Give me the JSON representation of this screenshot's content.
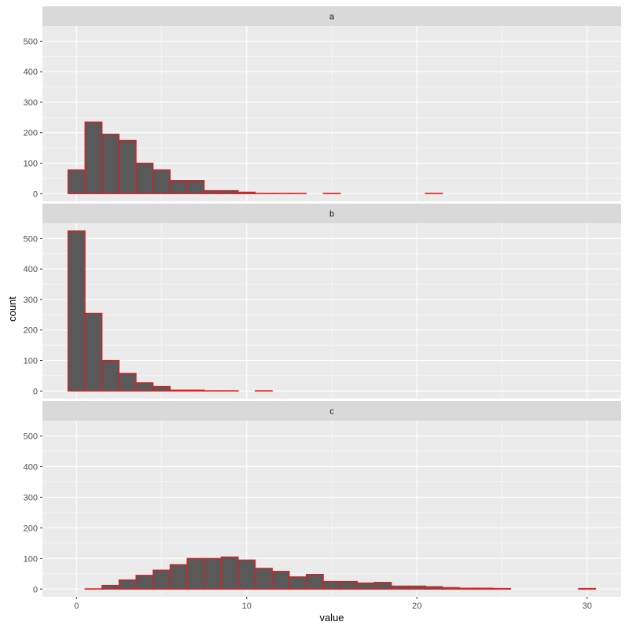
{
  "chart_data": {
    "type": "bar",
    "xlabel": "value",
    "ylabel": "count",
    "xlim": [
      -2,
      32
    ],
    "ylim": [
      -25,
      550
    ],
    "x_ticks": [
      0,
      10,
      20,
      30
    ],
    "x_tick_labels": [
      "0",
      "10",
      "20",
      "30"
    ],
    "y_ticks": [
      0,
      100,
      200,
      300,
      400,
      500
    ],
    "y_tick_labels": [
      "0",
      "100",
      "200",
      "300",
      "400",
      "500"
    ],
    "grid": true,
    "facets": [
      {
        "name": "a",
        "bins": [
          {
            "x0": -0.5,
            "x1": 0.5,
            "count": 78
          },
          {
            "x0": 0.5,
            "x1": 1.5,
            "count": 235
          },
          {
            "x0": 1.5,
            "x1": 2.5,
            "count": 195
          },
          {
            "x0": 2.5,
            "x1": 3.5,
            "count": 175
          },
          {
            "x0": 3.5,
            "x1": 4.5,
            "count": 100
          },
          {
            "x0": 4.5,
            "x1": 5.5,
            "count": 78
          },
          {
            "x0": 5.5,
            "x1": 6.5,
            "count": 43
          },
          {
            "x0": 6.5,
            "x1": 7.5,
            "count": 43
          },
          {
            "x0": 7.5,
            "x1": 8.5,
            "count": 10
          },
          {
            "x0": 8.5,
            "x1": 9.5,
            "count": 10
          },
          {
            "x0": 9.5,
            "x1": 10.5,
            "count": 5
          },
          {
            "x0": 10.5,
            "x1": 11.5,
            "count": 1
          },
          {
            "x0": 11.5,
            "x1": 12.5,
            "count": 1
          },
          {
            "x0": 12.5,
            "x1": 13.5,
            "count": 1
          },
          {
            "x0": 14.5,
            "x1": 15.5,
            "count": 1
          },
          {
            "x0": 20.5,
            "x1": 21.5,
            "count": 1
          }
        ]
      },
      {
        "name": "b",
        "bins": [
          {
            "x0": -0.5,
            "x1": 0.5,
            "count": 525
          },
          {
            "x0": 0.5,
            "x1": 1.5,
            "count": 255
          },
          {
            "x0": 1.5,
            "x1": 2.5,
            "count": 100
          },
          {
            "x0": 2.5,
            "x1": 3.5,
            "count": 58
          },
          {
            "x0": 3.5,
            "x1": 4.5,
            "count": 27
          },
          {
            "x0": 4.5,
            "x1": 5.5,
            "count": 15
          },
          {
            "x0": 5.5,
            "x1": 6.5,
            "count": 3
          },
          {
            "x0": 6.5,
            "x1": 7.5,
            "count": 3
          },
          {
            "x0": 7.5,
            "x1": 8.5,
            "count": 1
          },
          {
            "x0": 8.5,
            "x1": 9.5,
            "count": 1
          },
          {
            "x0": 10.5,
            "x1": 11.5,
            "count": 1
          }
        ]
      },
      {
        "name": "c",
        "bins": [
          {
            "x0": 0.5,
            "x1": 1.5,
            "count": 1
          },
          {
            "x0": 1.5,
            "x1": 2.5,
            "count": 12
          },
          {
            "x0": 2.5,
            "x1": 3.5,
            "count": 30
          },
          {
            "x0": 3.5,
            "x1": 4.5,
            "count": 45
          },
          {
            "x0": 4.5,
            "x1": 5.5,
            "count": 62
          },
          {
            "x0": 5.5,
            "x1": 6.5,
            "count": 80
          },
          {
            "x0": 6.5,
            "x1": 7.5,
            "count": 100
          },
          {
            "x0": 7.5,
            "x1": 8.5,
            "count": 100
          },
          {
            "x0": 8.5,
            "x1": 9.5,
            "count": 105
          },
          {
            "x0": 9.5,
            "x1": 10.5,
            "count": 95
          },
          {
            "x0": 10.5,
            "x1": 11.5,
            "count": 68
          },
          {
            "x0": 11.5,
            "x1": 12.5,
            "count": 58
          },
          {
            "x0": 12.5,
            "x1": 13.5,
            "count": 40
          },
          {
            "x0": 13.5,
            "x1": 14.5,
            "count": 48
          },
          {
            "x0": 14.5,
            "x1": 15.5,
            "count": 25
          },
          {
            "x0": 15.5,
            "x1": 16.5,
            "count": 25
          },
          {
            "x0": 16.5,
            "x1": 17.5,
            "count": 20
          },
          {
            "x0": 17.5,
            "x1": 18.5,
            "count": 22
          },
          {
            "x0": 18.5,
            "x1": 19.5,
            "count": 10
          },
          {
            "x0": 19.5,
            "x1": 20.5,
            "count": 10
          },
          {
            "x0": 20.5,
            "x1": 21.5,
            "count": 8
          },
          {
            "x0": 21.5,
            "x1": 22.5,
            "count": 5
          },
          {
            "x0": 22.5,
            "x1": 23.5,
            "count": 3
          },
          {
            "x0": 23.5,
            "x1": 24.5,
            "count": 3
          },
          {
            "x0": 24.5,
            "x1": 25.5,
            "count": 2
          },
          {
            "x0": 29.5,
            "x1": 30.5,
            "count": 2
          }
        ]
      }
    ]
  },
  "colors": {
    "panel_bg": "#ebebeb",
    "strip_bg": "#d9d9d9",
    "bar_fill": "#595959",
    "bar_outline": "#e41a1c",
    "grid": "#ffffff"
  }
}
